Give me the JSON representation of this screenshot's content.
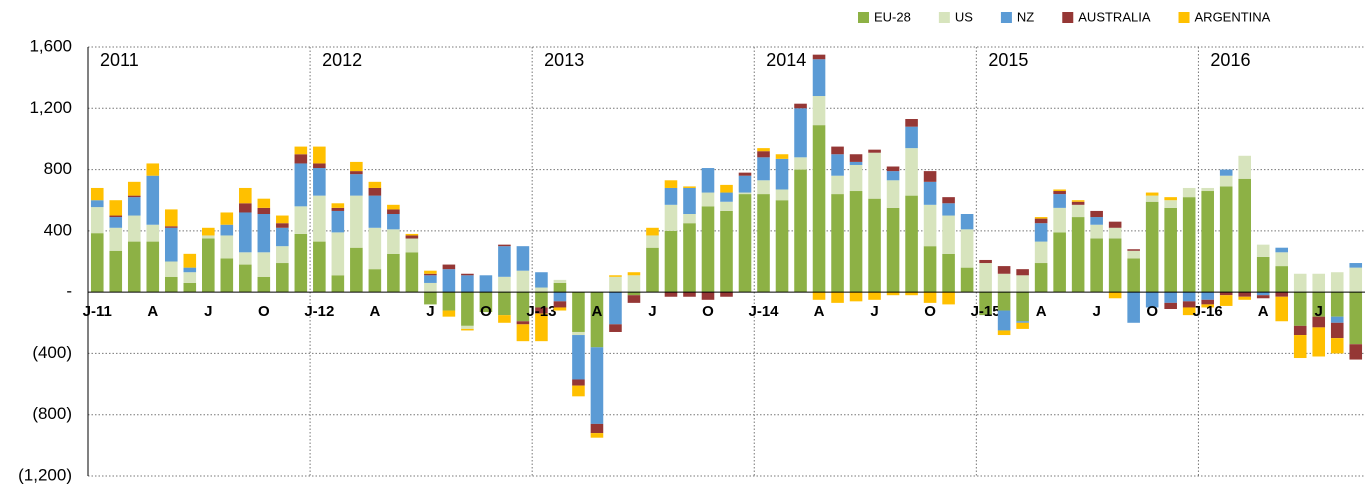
{
  "chart_data": {
    "type": "bar",
    "stacked": true,
    "categories": [
      "J-11",
      null,
      null,
      "A",
      null,
      null,
      "J",
      null,
      null,
      "O",
      null,
      null,
      "J-12",
      null,
      null,
      "A",
      null,
      null,
      "J",
      null,
      null,
      "O",
      null,
      null,
      "J-13",
      null,
      null,
      "A",
      null,
      null,
      "J",
      null,
      null,
      "O",
      null,
      null,
      "J-14",
      null,
      null,
      "A",
      null,
      null,
      "J",
      null,
      null,
      "O",
      null,
      null,
      "J-15",
      null,
      null,
      "A",
      null,
      null,
      "J",
      null,
      null,
      "O",
      null,
      null,
      "J-16",
      null,
      null,
      "A",
      null,
      null,
      "J",
      null,
      null
    ],
    "annotations": [
      "2011",
      "2012",
      "2013",
      "2014",
      "2015",
      "2016"
    ],
    "series": [
      {
        "name": "EU-28",
        "color": "#8db145",
        "values": [
          385,
          270,
          330,
          330,
          100,
          60,
          350,
          220,
          180,
          100,
          190,
          380,
          330,
          110,
          290,
          150,
          250,
          260,
          -80,
          -120,
          -220,
          -130,
          -150,
          -190,
          -100,
          60,
          -260,
          -360,
          0,
          -20,
          290,
          400,
          450,
          560,
          530,
          640,
          640,
          600,
          800,
          1090,
          640,
          660,
          610,
          550,
          630,
          300,
          250,
          160,
          -150,
          -120,
          -190,
          190,
          390,
          490,
          350,
          350,
          220,
          590,
          550,
          620,
          660,
          690,
          740,
          230,
          170,
          -220,
          -160,
          -160,
          -340
        ]
      },
      {
        "name": "US",
        "color": "#d7e4bd",
        "values": [
          170,
          150,
          170,
          110,
          100,
          70,
          20,
          150,
          80,
          160,
          110,
          180,
          300,
          280,
          340,
          270,
          160,
          90,
          60,
          0,
          -20,
          0,
          100,
          140,
          30,
          20,
          -20,
          0,
          100,
          110,
          80,
          170,
          60,
          90,
          60,
          10,
          90,
          70,
          80,
          190,
          120,
          170,
          300,
          180,
          310,
          270,
          250,
          250,
          190,
          120,
          110,
          140,
          160,
          80,
          90,
          70,
          50,
          40,
          50,
          60,
          20,
          70,
          150,
          80,
          90,
          120,
          120,
          130,
          160
        ]
      },
      {
        "name": "NZ",
        "color": "#5b9bd5",
        "values": [
          45,
          70,
          120,
          320,
          220,
          30,
          0,
          70,
          260,
          250,
          120,
          280,
          180,
          140,
          140,
          210,
          100,
          0,
          50,
          150,
          110,
          110,
          200,
          160,
          100,
          -60,
          -290,
          -500,
          -210,
          0,
          0,
          110,
          170,
          160,
          60,
          110,
          150,
          200,
          320,
          240,
          140,
          20,
          0,
          60,
          140,
          150,
          80,
          100,
          0,
          -130,
          -10,
          120,
          90,
          0,
          50,
          0,
          -200,
          -100,
          -70,
          -60,
          -50,
          40,
          0,
          -20,
          30,
          0,
          0,
          -40,
          30
        ]
      },
      {
        "name": "AUSTRALIA",
        "color": "#953735",
        "values": [
          0,
          10,
          10,
          0,
          10,
          0,
          0,
          0,
          60,
          40,
          30,
          60,
          30,
          20,
          20,
          50,
          30,
          20,
          10,
          30,
          10,
          0,
          10,
          -20,
          -40,
          -40,
          -40,
          -60,
          -50,
          -50,
          0,
          -30,
          -30,
          -50,
          -30,
          20,
          40,
          0,
          30,
          30,
          50,
          50,
          20,
          30,
          50,
          70,
          40,
          0,
          20,
          50,
          40,
          30,
          20,
          20,
          40,
          40,
          10,
          0,
          -40,
          -40,
          -30,
          -20,
          -30,
          -20,
          -30,
          -60,
          -70,
          -100,
          -100
        ]
      },
      {
        "name": "ARGENTINA",
        "color": "#ffc000",
        "values": [
          80,
          100,
          90,
          80,
          110,
          90,
          50,
          80,
          100,
          60,
          50,
          50,
          110,
          30,
          60,
          40,
          30,
          10,
          20,
          -40,
          -10,
          0,
          -50,
          -110,
          -180,
          -20,
          -70,
          -30,
          10,
          20,
          50,
          50,
          10,
          0,
          50,
          0,
          20,
          30,
          0,
          -50,
          -70,
          -60,
          -50,
          -20,
          -20,
          -70,
          -80,
          0,
          0,
          -30,
          -40,
          10,
          10,
          10,
          0,
          -40,
          0,
          20,
          20,
          -50,
          -20,
          -70,
          -20,
          0,
          -160,
          -150,
          -190,
          -100,
          0
        ]
      }
    ],
    "ylim": [
      -1200,
      1600
    ],
    "yticks": [
      {
        "value": -1200,
        "label": "(1,200)"
      },
      {
        "value": -800,
        "label": "(800)"
      },
      {
        "value": -400,
        "label": "(400)"
      },
      {
        "value": 0,
        "label": "-"
      },
      {
        "value": 400,
        "label": "400"
      },
      {
        "value": 800,
        "label": "800"
      },
      {
        "value": 1200,
        "label": "1,200"
      },
      {
        "value": 1600,
        "label": "1,600"
      }
    ],
    "grid": true,
    "legend": "top-right"
  }
}
